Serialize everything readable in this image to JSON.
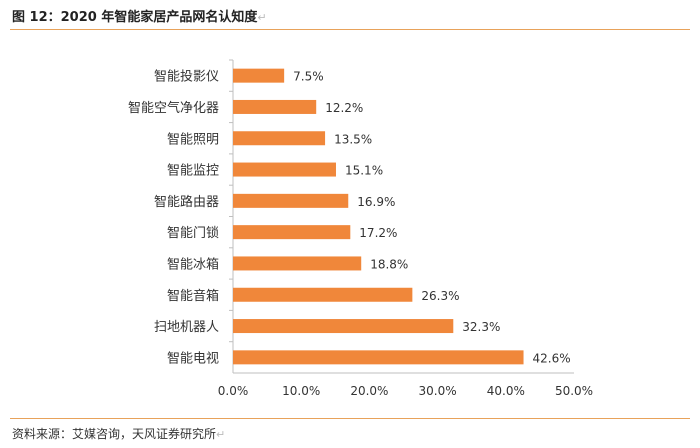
{
  "figure": {
    "title": "图 12：2020 年智能家居产品网名认知度",
    "source": "资料来源：艾媒咨询，天风证券研究所",
    "return_mark": "↵"
  },
  "chart_data": {
    "type": "bar",
    "orientation": "horizontal",
    "categories": [
      "智能投影仪",
      "智能空气净化器",
      "智能照明",
      "智能监控",
      "智能路由器",
      "智能门锁",
      "智能冰箱",
      "智能音箱",
      "扫地机器人",
      "智能电视"
    ],
    "values": [
      7.5,
      12.2,
      13.5,
      15.1,
      16.9,
      17.2,
      18.8,
      26.3,
      32.3,
      42.6
    ],
    "value_labels": [
      "7.5%",
      "12.2%",
      "13.5%",
      "15.1%",
      "16.9%",
      "17.2%",
      "18.8%",
      "26.3%",
      "32.3%",
      "42.6%"
    ],
    "xlim": [
      0,
      50
    ],
    "xticks": [
      0,
      10,
      20,
      30,
      40,
      50
    ],
    "xtick_labels": [
      "0.0%",
      "10.0%",
      "20.0%",
      "30.0%",
      "40.0%",
      "50.0%"
    ],
    "title": "",
    "xlabel": "",
    "ylabel": "",
    "grid": false,
    "bar_color": "#f0873a",
    "axis_color": "#bfbfbf"
  }
}
